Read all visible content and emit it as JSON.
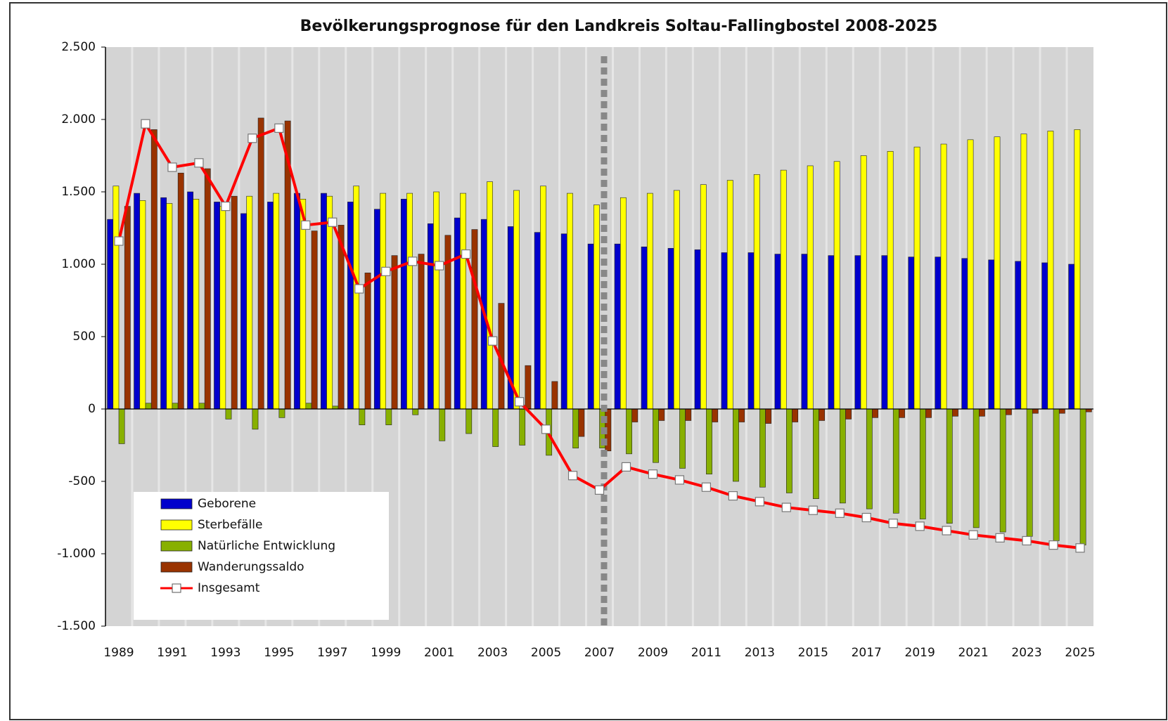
{
  "chart_data": {
    "type": "bar",
    "title": "Bevölkerungsprognose für den Landkreis Soltau-Fallingbostel 2008-2025",
    "categories": [
      "1989",
      null,
      "1991",
      null,
      "1993",
      null,
      "1995",
      null,
      "1997",
      null,
      "1999",
      null,
      "2001",
      null,
      "2003",
      null,
      "2005",
      null,
      "2007",
      null,
      "2009",
      null,
      "2011",
      null,
      "2013",
      null,
      "2015",
      null,
      "2017",
      null,
      "2019",
      null,
      "2021",
      null,
      "2023",
      null,
      "2025"
    ],
    "series": [
      {
        "name": "Geborene",
        "color": "#0000cc",
        "values": [
          1310,
          1490,
          1460,
          1500,
          1430,
          1350,
          1430,
          1490,
          1490,
          1430,
          1380,
          1450,
          1280,
          1320,
          1310,
          1260,
          1220,
          1210,
          1140,
          1140,
          1120,
          1110,
          1100,
          1080,
          1080,
          1070,
          1070,
          1060,
          1060,
          1060,
          1050,
          1050,
          1040,
          1030,
          1020,
          1010,
          1000
        ]
      },
      {
        "name": "Sterbefälle",
        "color": "#ffff00",
        "values": [
          1540,
          1440,
          1420,
          1450,
          1400,
          1470,
          1490,
          1450,
          1470,
          1540,
          1490,
          1490,
          1500,
          1490,
          1570,
          1510,
          1540,
          1490,
          1410,
          1460,
          1490,
          1510,
          1550,
          1580,
          1620,
          1650,
          1680,
          1710,
          1750,
          1780,
          1810,
          1830,
          1860,
          1880,
          1900,
          1920,
          1930
        ]
      },
      {
        "name": "Natürliche Entwicklung",
        "color": "#88b000",
        "values": [
          -240,
          40,
          40,
          40,
          -70,
          -140,
          -60,
          40,
          20,
          -110,
          -110,
          -40,
          -220,
          -170,
          -260,
          -250,
          -320,
          -270,
          -270,
          -310,
          -370,
          -410,
          -450,
          -500,
          -540,
          -580,
          -620,
          -650,
          -690,
          -720,
          -760,
          -790,
          -820,
          -850,
          -880,
          -910,
          -940
        ]
      },
      {
        "name": "Wanderungssaldo",
        "color": "#993300",
        "values": [
          1400,
          1930,
          1630,
          1660,
          1470,
          2010,
          1990,
          1230,
          1270,
          940,
          1060,
          1070,
          1200,
          1240,
          730,
          300,
          190,
          -190,
          -290,
          -90,
          -80,
          -80,
          -90,
          -90,
          -100,
          -90,
          -80,
          -70,
          -60,
          -60,
          -60,
          -50,
          -50,
          -40,
          -30,
          -30,
          -20
        ]
      },
      {
        "name": "Insgesamt",
        "type": "line",
        "color": "#ff0000",
        "values": [
          1160,
          1970,
          1670,
          1700,
          1400,
          1870,
          1940,
          1270,
          1290,
          830,
          950,
          1020,
          990,
          1070,
          470,
          50,
          -140,
          -460,
          -560,
          -400,
          -450,
          -490,
          -540,
          -600,
          -640,
          -680,
          -700,
          -720,
          -750,
          -790,
          -810,
          -840,
          -870,
          -890,
          -910,
          -940,
          -960
        ]
      }
    ],
    "ylim": [
      -1500,
      2500
    ],
    "yticks": [
      {
        "value": -1500,
        "label": "-1.500"
      },
      {
        "value": -1000,
        "label": "-1.000"
      },
      -500,
      0,
      500,
      {
        "value": 1000,
        "label": "1.000"
      },
      {
        "value": 1500,
        "label": "1.500"
      },
      {
        "value": 2000,
        "label": "2.000"
      },
      {
        "value": 2500,
        "label": "2.500"
      }
    ],
    "xgrid": true,
    "legend": "lower left"
  }
}
